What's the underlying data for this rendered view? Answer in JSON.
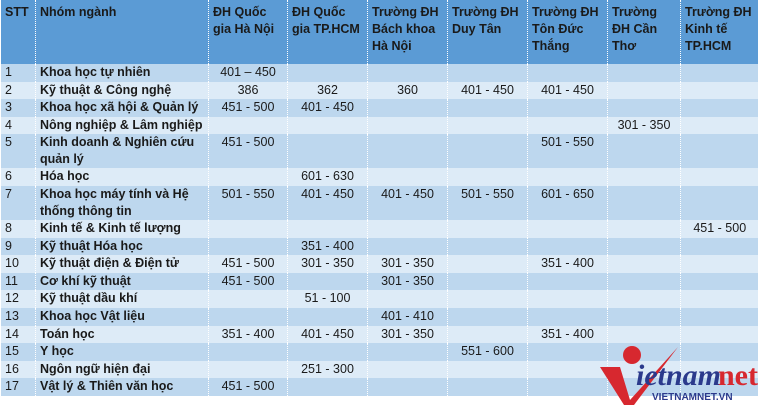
{
  "headers": [
    "STT",
    "Nhóm ngành",
    "ĐH Quốc gia Hà Nội",
    "ĐH Quốc gia TP.HCM",
    "Trường ĐH Bách khoa Hà Nội",
    "Trường ĐH Duy Tân",
    "Trường ĐH Tôn Đức Thắng",
    "Trường ĐH Cần Thơ",
    "Trường ĐH Kinh tế TP.HCM"
  ],
  "rows": [
    [
      "1",
      "Khoa học tự nhiên",
      "401 – 450",
      "",
      "",
      "",
      "",
      "",
      ""
    ],
    [
      "2",
      "Kỹ thuật & Công nghệ",
      "386",
      "362",
      "360",
      "401 - 450",
      "401 - 450",
      "",
      ""
    ],
    [
      "3",
      "Khoa học xã hội & Quản lý",
      "451 - 500",
      "401 - 450",
      "",
      "",
      "",
      "",
      ""
    ],
    [
      "4",
      "Nông nghiệp & Lâm nghiệp",
      "",
      "",
      "",
      "",
      "",
      "301 - 350",
      ""
    ],
    [
      "5",
      "Kinh doanh & Nghiên cứu quản lý",
      "451 - 500",
      "",
      "",
      "",
      "501 - 550",
      "",
      ""
    ],
    [
      "6",
      "Hóa học",
      "",
      "601 - 630",
      "",
      "",
      "",
      "",
      ""
    ],
    [
      "7",
      "Khoa học máy tính và Hệ thống thông tin",
      "501 - 550",
      "401 - 450",
      "401 - 450",
      "501 - 550",
      "601 - 650",
      "",
      ""
    ],
    [
      "8",
      "Kinh tế & Kinh tế lượng",
      "",
      "",
      "",
      "",
      "",
      "",
      "451 - 500"
    ],
    [
      "9",
      "Kỹ thuật Hóa học",
      "",
      "351 - 400",
      "",
      "",
      "",
      "",
      ""
    ],
    [
      "10",
      "Kỹ thuật điện & Điện tử",
      "451 - 500",
      "301 - 350",
      "301 - 350",
      "",
      "351 - 400",
      "",
      ""
    ],
    [
      "11",
      "Cơ khí kỹ thuật",
      "451 - 500",
      "",
      "301 - 350",
      "",
      "",
      "",
      ""
    ],
    [
      "12",
      "Kỹ thuật dầu khí",
      "",
      "51 - 100",
      "",
      "",
      "",
      "",
      ""
    ],
    [
      "13",
      "Khoa học Vật liệu",
      "",
      "",
      "401 - 410",
      "",
      "",
      "",
      ""
    ],
    [
      "14",
      "Toán học",
      "351 - 400",
      "401 - 450",
      "301 - 350",
      "",
      "351 - 400",
      "",
      ""
    ],
    [
      "15",
      "Y học",
      "",
      "",
      "",
      "551 - 600",
      "",
      "",
      ""
    ],
    [
      "16",
      "Ngôn ngữ hiện đại",
      "",
      "251 - 300",
      "",
      "",
      "",
      "",
      ""
    ],
    [
      "17",
      "Vật lý & Thiên văn học",
      "451 - 500",
      "",
      "",
      "",
      "",
      "",
      ""
    ]
  ],
  "watermark": {
    "logo_text": "vietnamnet",
    "url_text": "VIETNAMNET.VN"
  },
  "colors": {
    "header": "#5b9bd5",
    "row_dark": "#bdd7ee",
    "row_light": "#ddebf7",
    "logo_red": "#d7282f",
    "logo_blue": "#2b3a8c"
  }
}
